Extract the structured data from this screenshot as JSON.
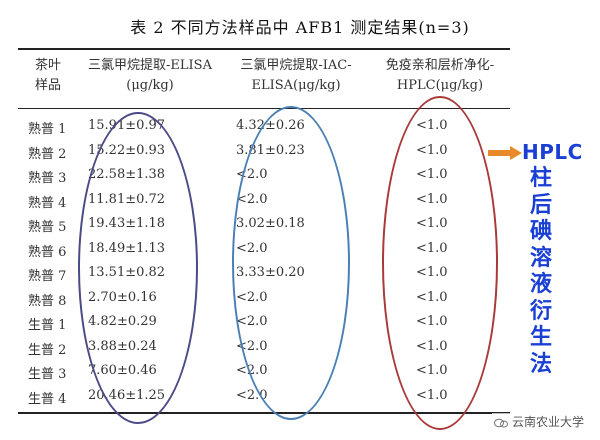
{
  "caption": "表 2   不同方法样品中 AFB1 测定结果(n=3)",
  "headers": [
    [
      "茶叶",
      "样品"
    ],
    [
      "三氯甲烷提取-ELISA",
      "(μg/kg)"
    ],
    [
      "三氯甲烷提取-IAC-",
      "ELISA(μg/kg)"
    ],
    [
      "免疫亲和层析净化-",
      "HPLC(μg/kg)"
    ]
  ],
  "rows": [
    [
      "熟普 1",
      "15.91±0.97",
      "4.32±0.26",
      "<1.0"
    ],
    [
      "熟普 2",
      "15.22±0.93",
      "3.81±0.23",
      "<1.0"
    ],
    [
      "熟普 3",
      "22.58±1.38",
      "<2.0",
      "<1.0"
    ],
    [
      "熟普 4",
      "11.81±0.72",
      "<2.0",
      "<1.0"
    ],
    [
      "熟普 5",
      "19.43±1.18",
      "3.02±0.18",
      "<1.0"
    ],
    [
      "熟普 6",
      "18.49±1.13",
      "<2.0",
      "<1.0"
    ],
    [
      "熟普 7",
      "13.51±0.82",
      "3.33±0.20",
      "<1.0"
    ],
    [
      "熟普 8",
      "2.70±0.16",
      "<2.0",
      "<1.0"
    ],
    [
      "生普 1",
      "4.82±0.29",
      "<2.0",
      "<1.0"
    ],
    [
      "生普 2",
      "3.88±0.24",
      "<2.0",
      "<1.0"
    ],
    [
      "生普 3",
      "7.60±0.46",
      "<2.0",
      "<1.0"
    ],
    [
      "生普 4",
      "20.46±1.25",
      "<2.0",
      "<1.0"
    ]
  ],
  "annotation": {
    "title": "HPLC",
    "vertical_chars": [
      "柱",
      "后",
      "碘",
      "溶",
      "液",
      "衍",
      "生",
      "法"
    ],
    "color": "#1a3fd4",
    "arrow_color": "#e8892b"
  },
  "oval_colors": [
    "#4b4a86",
    "#4a80b3",
    "#a83a3a"
  ],
  "watermark": "云南农业大学"
}
